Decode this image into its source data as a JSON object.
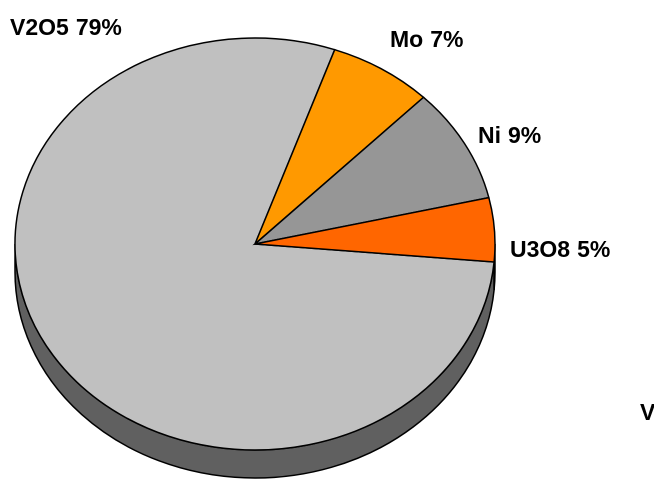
{
  "chart_data": {
    "type": "pie",
    "categories": [
      "V2O5",
      "Mo",
      "Ni",
      "U3O8"
    ],
    "values": [
      79,
      7,
      9,
      5
    ],
    "value_labels": [
      "79%",
      "7%",
      "9%",
      "5%"
    ],
    "colors": [
      "#c0c0c0",
      "#ff9900",
      "#969696",
      "#ff6600"
    ],
    "annotation": "V"
  }
}
